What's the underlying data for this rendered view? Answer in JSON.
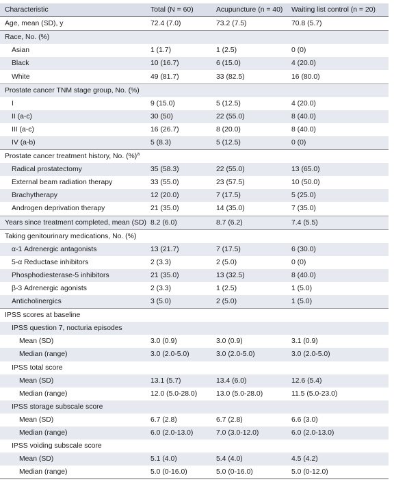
{
  "header": {
    "characteristic": "Characteristic",
    "total": "Total (N = 60)",
    "acupuncture": "Acupuncture (n = 40)",
    "waiting": "Waiting list control (n = 20)"
  },
  "rows": [
    {
      "label": "Age, mean (SD), y",
      "level": 0,
      "total": "72.4 (7.0)",
      "acupuncture": "73.2 (7.5)",
      "waiting": "70.8 (5.7)"
    },
    {
      "label": "Race, No. (%)",
      "level": 0,
      "total": "",
      "acupuncture": "",
      "waiting": ""
    },
    {
      "label": "Asian",
      "level": 1,
      "total": "1 (1.7)",
      "acupuncture": "1 (2.5)",
      "waiting": "0 (0)"
    },
    {
      "label": "Black",
      "level": 1,
      "total": "10 (16.7)",
      "acupuncture": "6 (15.0)",
      "waiting": "4 (20.0)"
    },
    {
      "label": "White",
      "level": 1,
      "total": "49 (81.7)",
      "acupuncture": "33 (82.5)",
      "waiting": "16 (80.0)"
    },
    {
      "label": "Prostate cancer TNM stage group, No. (%)",
      "level": 0,
      "total": "",
      "acupuncture": "",
      "waiting": ""
    },
    {
      "label": "I",
      "level": 1,
      "total": "9 (15.0)",
      "acupuncture": "5 (12.5)",
      "waiting": "4 (20.0)"
    },
    {
      "label": "II (a-c)",
      "level": 1,
      "total": "30 (50)",
      "acupuncture": "22 (55.0)",
      "waiting": "8 (40.0)"
    },
    {
      "label": "III (a-c)",
      "level": 1,
      "total": "16 (26.7)",
      "acupuncture": "8 (20.0)",
      "waiting": "8 (40.0)"
    },
    {
      "label": "IV (a-b)",
      "level": 1,
      "total": "5 (8.3)",
      "acupuncture": "5 (12.5)",
      "waiting": "0 (0)"
    },
    {
      "label": "Prostate cancer treatment history, No. (%)",
      "sup": "a",
      "level": 0,
      "total": "",
      "acupuncture": "",
      "waiting": ""
    },
    {
      "label": "Radical prostatectomy",
      "level": 1,
      "total": "35 (58.3)",
      "acupuncture": "22 (55.0)",
      "waiting": "13 (65.0)"
    },
    {
      "label": "External beam radiation therapy",
      "level": 1,
      "total": "33 (55.0)",
      "acupuncture": "23 (57.5)",
      "waiting": "10 (50.0)"
    },
    {
      "label": "Brachytherapy",
      "level": 1,
      "total": "12 (20.0)",
      "acupuncture": "7 (17.5)",
      "waiting": "5 (25.0)"
    },
    {
      "label": "Androgen deprivation therapy",
      "level": 1,
      "total": "21 (35.0)",
      "acupuncture": "14 (35.0)",
      "waiting": "7 (35.0)"
    },
    {
      "label": "Years since treatment completed, mean (SD)",
      "level": 0,
      "total": "8.2 (6.0)",
      "acupuncture": "8.7 (6.2)",
      "waiting": "7.4 (5.5)"
    },
    {
      "label": "Taking genitourinary medications, No. (%)",
      "level": 0,
      "total": "",
      "acupuncture": "",
      "waiting": ""
    },
    {
      "label": "α-1 Adrenergic antagonists",
      "level": 1,
      "total": "13 (21.7)",
      "acupuncture": "7 (17.5)",
      "waiting": "6 (30.0)"
    },
    {
      "label": "5-α Reductase inhibitors",
      "level": 1,
      "total": "2 (3.3)",
      "acupuncture": "2 (5.0)",
      "waiting": "0 (0)"
    },
    {
      "label": "Phosphodiesterase-5 inhibitors",
      "level": 1,
      "total": "21 (35.0)",
      "acupuncture": "13 (32.5)",
      "waiting": "8 (40.0)"
    },
    {
      "label": "β-3 Adrenergic agonists",
      "level": 1,
      "total": "2 (3.3)",
      "acupuncture": "1 (2.5)",
      "waiting": "1 (5.0)"
    },
    {
      "label": "Anticholinergics",
      "level": 1,
      "total": "3 (5.0)",
      "acupuncture": "2 (5.0)",
      "waiting": "1 (5.0)"
    },
    {
      "label": "IPSS scores at baseline",
      "level": 0,
      "total": "",
      "acupuncture": "",
      "waiting": ""
    },
    {
      "label": "IPSS question 7, nocturia episodes",
      "level": 1,
      "total": "",
      "acupuncture": "",
      "waiting": ""
    },
    {
      "label": "Mean (SD)",
      "level": 2,
      "total": "3.0 (0.9)",
      "acupuncture": "3.0 (0.9)",
      "waiting": "3.1 (0.9)"
    },
    {
      "label": "Median (range)",
      "level": 2,
      "total": "3.0 (2.0-5.0)",
      "acupuncture": "3.0 (2.0-5.0)",
      "waiting": "3.0 (2.0-5.0)"
    },
    {
      "label": "IPSS total score",
      "level": 1,
      "total": "",
      "acupuncture": "",
      "waiting": ""
    },
    {
      "label": "Mean (SD)",
      "level": 2,
      "total": "13.1 (5.7)",
      "acupuncture": "13.4 (6.0)",
      "waiting": "12.6 (5.4)"
    },
    {
      "label": "Median (range)",
      "level": 2,
      "total": "12.0 (5.0-28.0)",
      "acupuncture": "13.0 (5.0-28.0)",
      "waiting": "11.5 (5.0-23.0)"
    },
    {
      "label": "IPSS storage subscale score",
      "level": 1,
      "total": "",
      "acupuncture": "",
      "waiting": ""
    },
    {
      "label": "Mean (SD)",
      "level": 2,
      "total": "6.7 (2.8)",
      "acupuncture": "6.7 (2.8)",
      "waiting": "6.6 (3.0)"
    },
    {
      "label": "Median (range)",
      "level": 2,
      "total": "6.0 (2.0-13.0)",
      "acupuncture": "7.0 (3.0-12.0)",
      "waiting": "6.0 (2.0-13.0)"
    },
    {
      "label": "IPSS voiding subscale score",
      "level": 1,
      "total": "",
      "acupuncture": "",
      "waiting": ""
    },
    {
      "label": "Mean (SD)",
      "level": 2,
      "total": "5.1 (4.0)",
      "acupuncture": "5.4 (4.0)",
      "waiting": "4.5 (4.2)"
    },
    {
      "label": "Median (range)",
      "level": 2,
      "total": "5.0 (0-16.0)",
      "acupuncture": "5.0 (0-16.0)",
      "waiting": "5.0 (0-12.0)"
    }
  ]
}
